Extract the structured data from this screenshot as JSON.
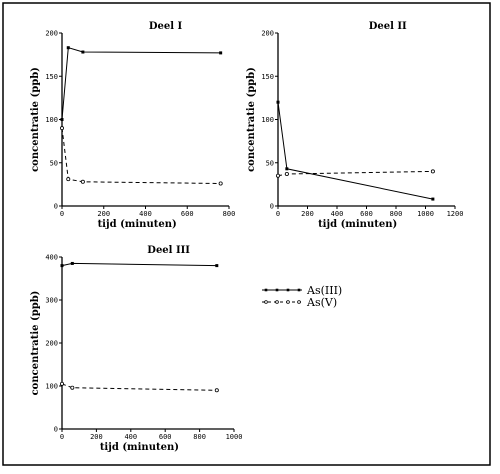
{
  "chart_data": [
    {
      "type": "line",
      "title": "Deel I",
      "xlabel": "tijd (minuten)",
      "ylabel": "concentratie (ppb)",
      "xlim": [
        0,
        800
      ],
      "ylim": [
        0,
        200
      ],
      "xticks": [
        0,
        200,
        400,
        600,
        800
      ],
      "yticks": [
        0,
        50,
        100,
        150,
        200
      ],
      "series": [
        {
          "name": "As(III)",
          "style": "solid",
          "x": [
            0,
            30,
            100,
            760
          ],
          "y": [
            100,
            183,
            178,
            177
          ]
        },
        {
          "name": "As(V)",
          "style": "dashed",
          "x": [
            0,
            30,
            100,
            760
          ],
          "y": [
            90,
            31,
            28,
            26
          ]
        }
      ]
    },
    {
      "type": "line",
      "title": "Deel II",
      "xlabel": "tijd (minuten)",
      "ylabel": "concentratie (ppb)",
      "xlim": [
        0,
        1200
      ],
      "ylim": [
        0,
        200
      ],
      "xticks": [
        0,
        200,
        400,
        600,
        800,
        1000,
        1200
      ],
      "yticks": [
        0,
        50,
        100,
        150,
        200
      ],
      "series": [
        {
          "name": "As(III)",
          "style": "solid",
          "x": [
            0,
            60,
            1050
          ],
          "y": [
            120,
            43,
            8
          ]
        },
        {
          "name": "As(V)",
          "style": "dashed",
          "x": [
            0,
            60,
            1050
          ],
          "y": [
            35,
            37,
            40
          ]
        }
      ]
    },
    {
      "type": "line",
      "title": "Deel III",
      "xlabel": "tijd (minuten)",
      "ylabel": "concentratie (ppb)",
      "xlim": [
        0,
        1000
      ],
      "ylim": [
        0,
        400
      ],
      "xticks": [
        0,
        200,
        400,
        600,
        800,
        1000
      ],
      "yticks": [
        0,
        100,
        200,
        300,
        400
      ],
      "series": [
        {
          "name": "As(III)",
          "style": "solid",
          "x": [
            0,
            60,
            900
          ],
          "y": [
            380,
            385,
            380
          ]
        },
        {
          "name": "As(V)",
          "style": "dashed",
          "x": [
            0,
            60,
            900
          ],
          "y": [
            105,
            96,
            90
          ]
        }
      ]
    }
  ],
  "legend": [
    {
      "label": "As(III)",
      "style": "solid"
    },
    {
      "label": "As(V)",
      "style": "dashed"
    }
  ]
}
